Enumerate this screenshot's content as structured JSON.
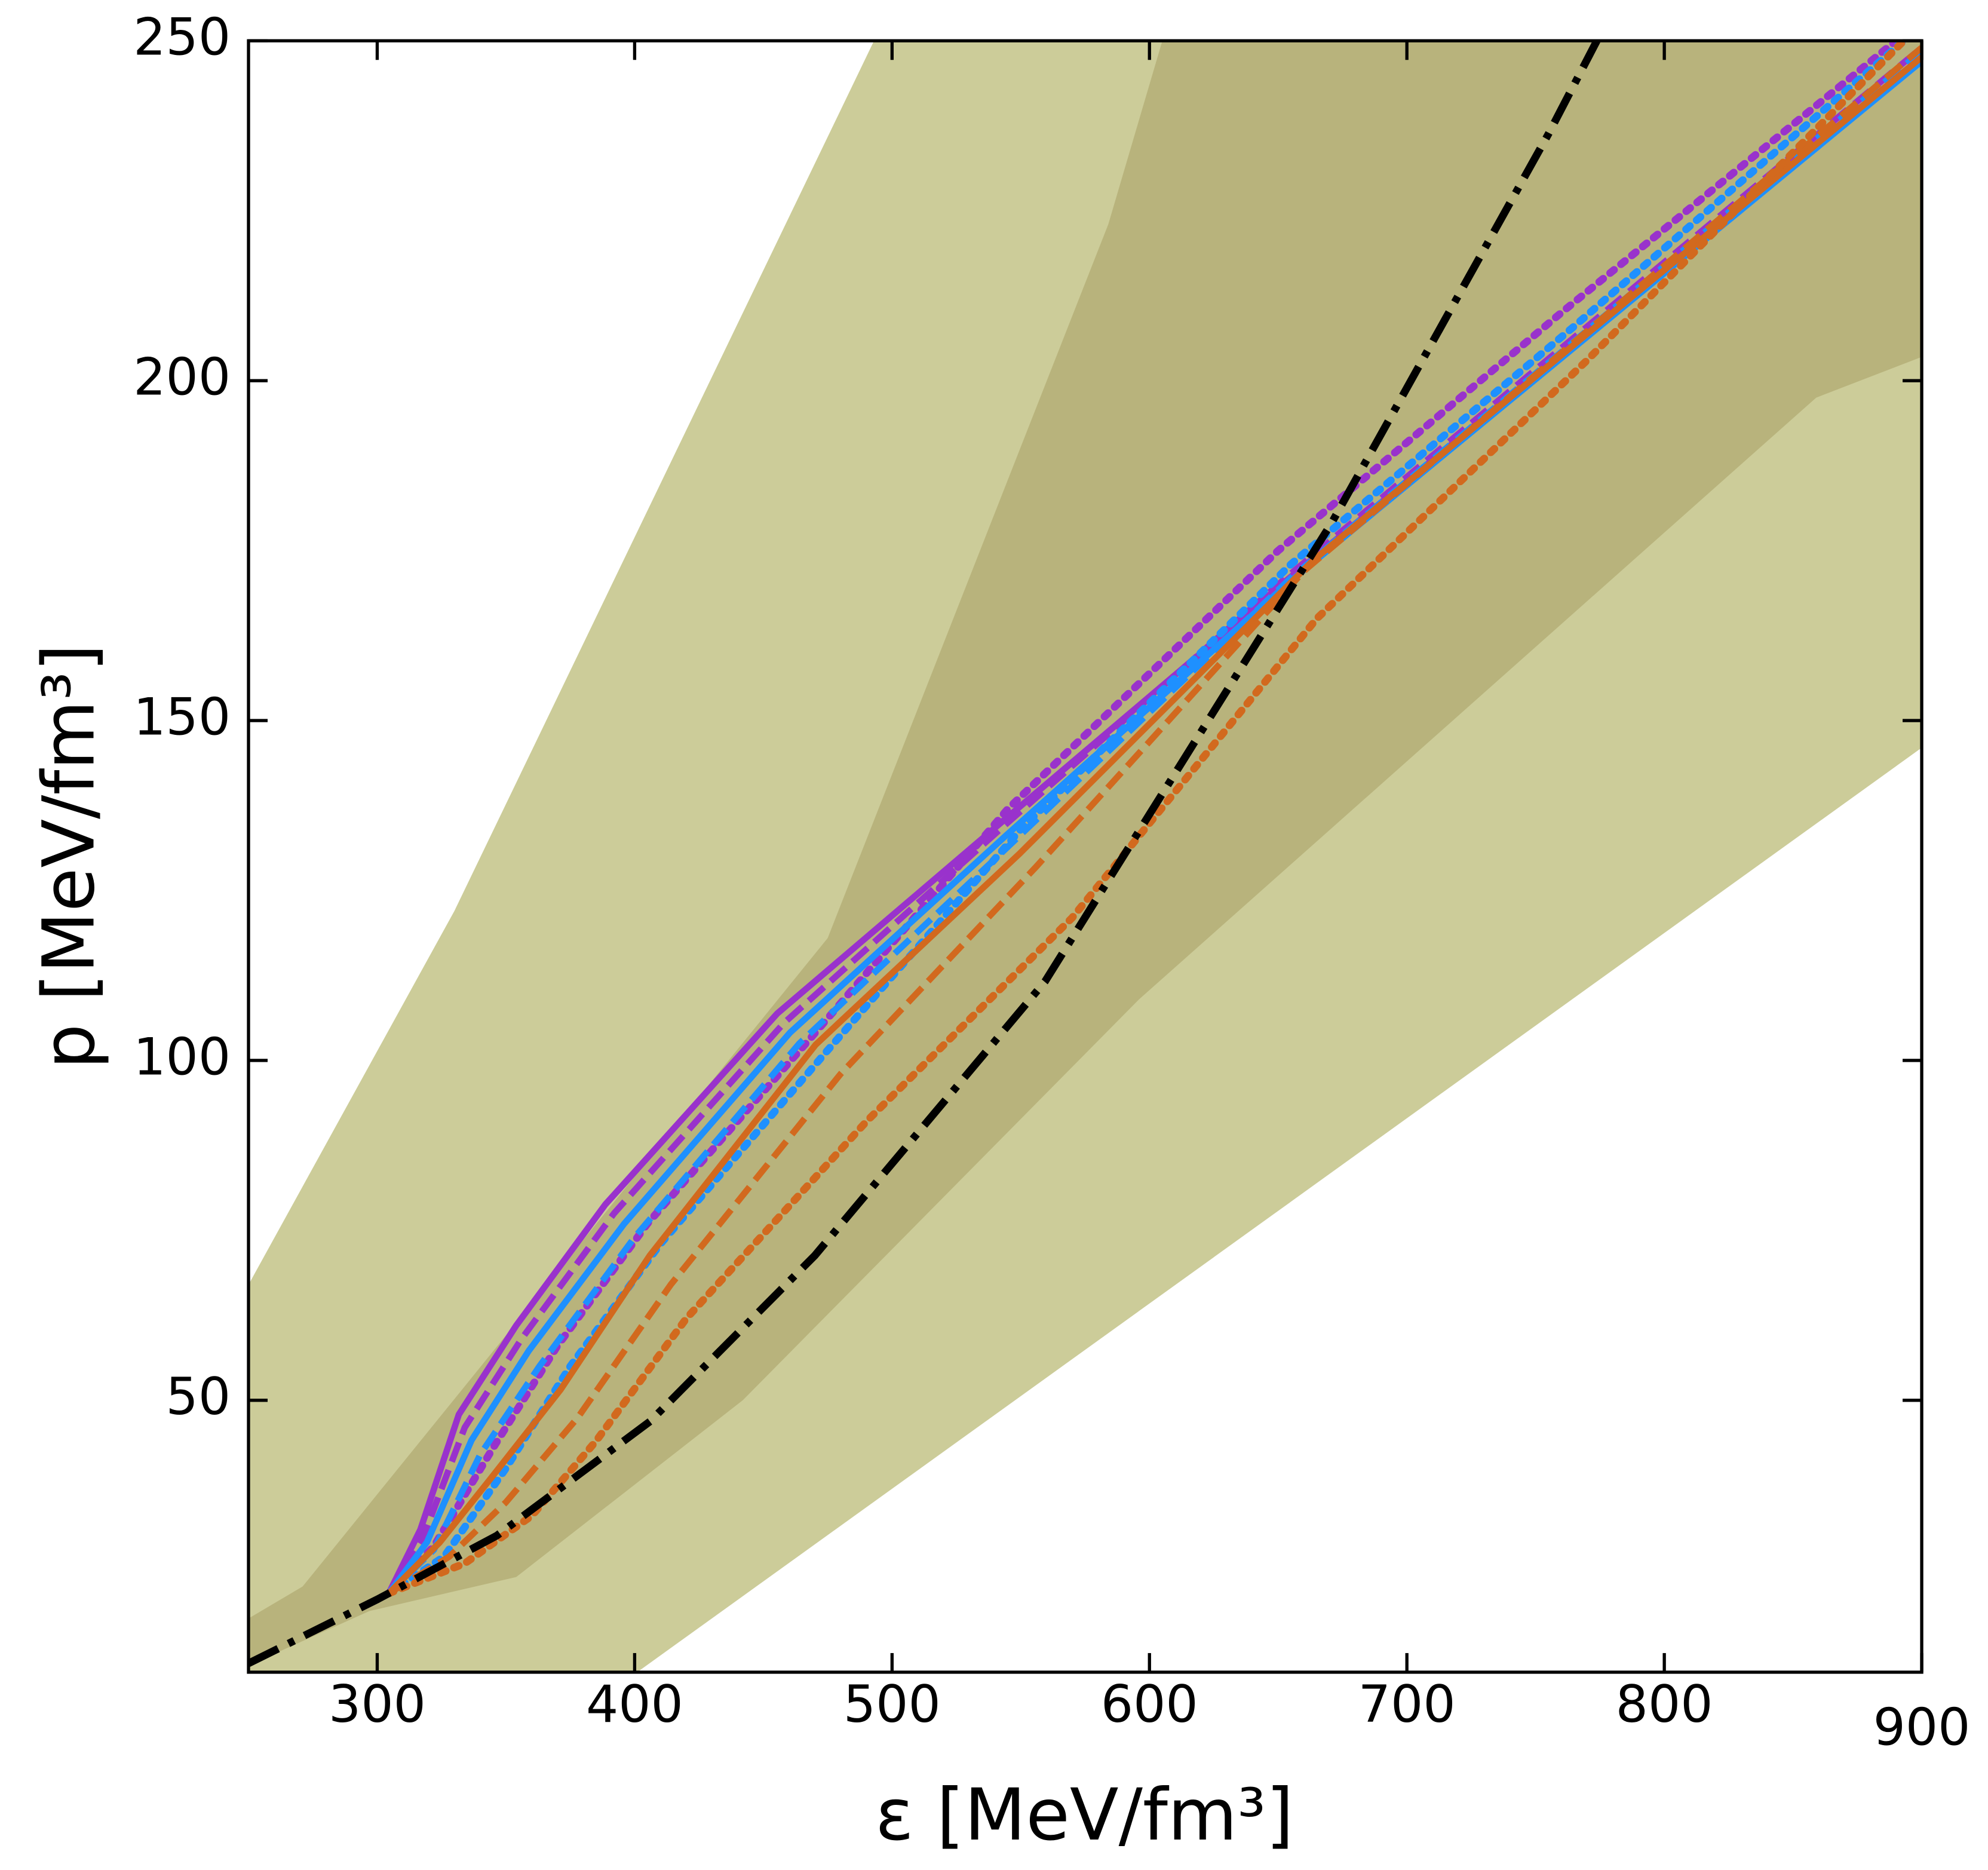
{
  "chart_data": {
    "type": "line",
    "x_label": "ε [MeV/fm³]",
    "y_label": "p [MeV/fm³]",
    "xlim": [
      250,
      900
    ],
    "ylim": [
      10,
      250
    ],
    "xticks": [
      300,
      400,
      500,
      600,
      700,
      800,
      900
    ],
    "yticks": [
      50,
      100,
      150,
      200,
      250
    ],
    "bands": [
      {
        "color": "#cccc99",
        "upper": {
          "x": [
            250,
            330,
            493,
            900
          ],
          "values": [
            67,
            122,
            250,
            250
          ]
        },
        "lower": {
          "x": [
            250,
            401,
            900
          ],
          "values": [
            10,
            10,
            146
          ]
        }
      },
      {
        "color": "#b8b37c",
        "upper": {
          "x": [
            250,
            271,
            475,
            584,
            605,
            900
          ],
          "values": [
            17.9,
            22.6,
            118,
            223,
            250,
            250
          ]
        },
        "lower": {
          "x": [
            250,
            297,
            354,
            442,
            596,
            859,
            900
          ],
          "values": [
            11,
            19,
            24,
            50,
            109,
            197.5,
            203.5
          ]
        }
      }
    ],
    "series": [
      {
        "color": "#9932cc",
        "style": "solid",
        "x": [
          304.5,
          316.8,
          331.7,
          354,
          388.6,
          455.4,
          539.6,
          653.5,
          900
        ],
        "values": [
          21.6,
          31,
          47.9,
          61,
          78.8,
          106.9,
          134.1,
          170.7,
          247.6
        ]
      },
      {
        "color": "#9932cc",
        "style": "dashed",
        "x": [
          304.5,
          318,
          334,
          356,
          392,
          458,
          542,
          653,
          900
        ],
        "values": [
          21.6,
          30,
          46,
          59,
          77.5,
          105.5,
          134,
          171,
          249
        ]
      },
      {
        "color": "#9932cc",
        "style": "dotted",
        "x": [
          304.5,
          322,
          345,
          370,
          405,
          470,
          545,
          650,
          760,
          890
        ],
        "values": [
          21.6,
          28.5,
          43,
          58,
          76,
          104,
          137,
          175,
          210,
          250
        ]
      },
      {
        "color": "#1e90ff",
        "style": "solid",
        "x": [
          304.5,
          319.3,
          336.6,
          358.9,
          396,
          460.4,
          544.6,
          653.5,
          900
        ],
        "values": [
          21.6,
          29.1,
          44.1,
          57.3,
          76,
          104.1,
          133.2,
          170.1,
          247
        ]
      },
      {
        "color": "#1e90ff",
        "style": "dashed",
        "x": [
          304.5,
          322,
          340,
          363,
          400,
          464,
          548,
          655,
          900
        ],
        "values": [
          21.6,
          28,
          42,
          55,
          74,
          102.5,
          132.5,
          171,
          248.5
        ]
      },
      {
        "color": "#1e90ff",
        "style": "dotted",
        "x": [
          304.5,
          326,
          350,
          375,
          410,
          475,
          550,
          655,
          765,
          893
        ],
        "values": [
          21.6,
          27,
          40,
          55,
          73,
          101.5,
          134,
          173,
          208,
          250
        ]
      },
      {
        "color": "#d2691e",
        "style": "solid",
        "x": [
          304.5,
          324.3,
          344.1,
          371.3,
          405.9,
          470.3,
          549.5,
          663.4,
          900
        ],
        "values": [
          21.6,
          29.1,
          38.5,
          51.6,
          71.3,
          102.3,
          130.4,
          173.5,
          247.6
        ]
      },
      {
        "color": "#d2691e",
        "style": "dashed",
        "x": [
          304.5,
          328,
          350,
          378,
          414,
          480,
          556,
          660,
          900
        ],
        "values": [
          21.6,
          27,
          35,
          47.5,
          67,
          98,
          128.5,
          172,
          249
        ]
      },
      {
        "color": "#d2691e",
        "style": "dotted",
        "x": [
          304.5,
          334,
          360,
          385,
          420,
          490,
          570,
          665,
          770,
          893
        ],
        "values": [
          21.6,
          26,
          33,
          44,
          62,
          91,
          121,
          165,
          203,
          250
        ]
      },
      {
        "color": "#000000",
        "style": "dashdot",
        "x": [
          250,
          300,
          346.5,
          406,
          470,
          559.4,
          670.8,
          755,
          773.8
        ],
        "values": [
          11.3,
          20.7,
          30.1,
          46.9,
          71.3,
          111.6,
          179.1,
          236.3,
          250
        ]
      }
    ]
  }
}
